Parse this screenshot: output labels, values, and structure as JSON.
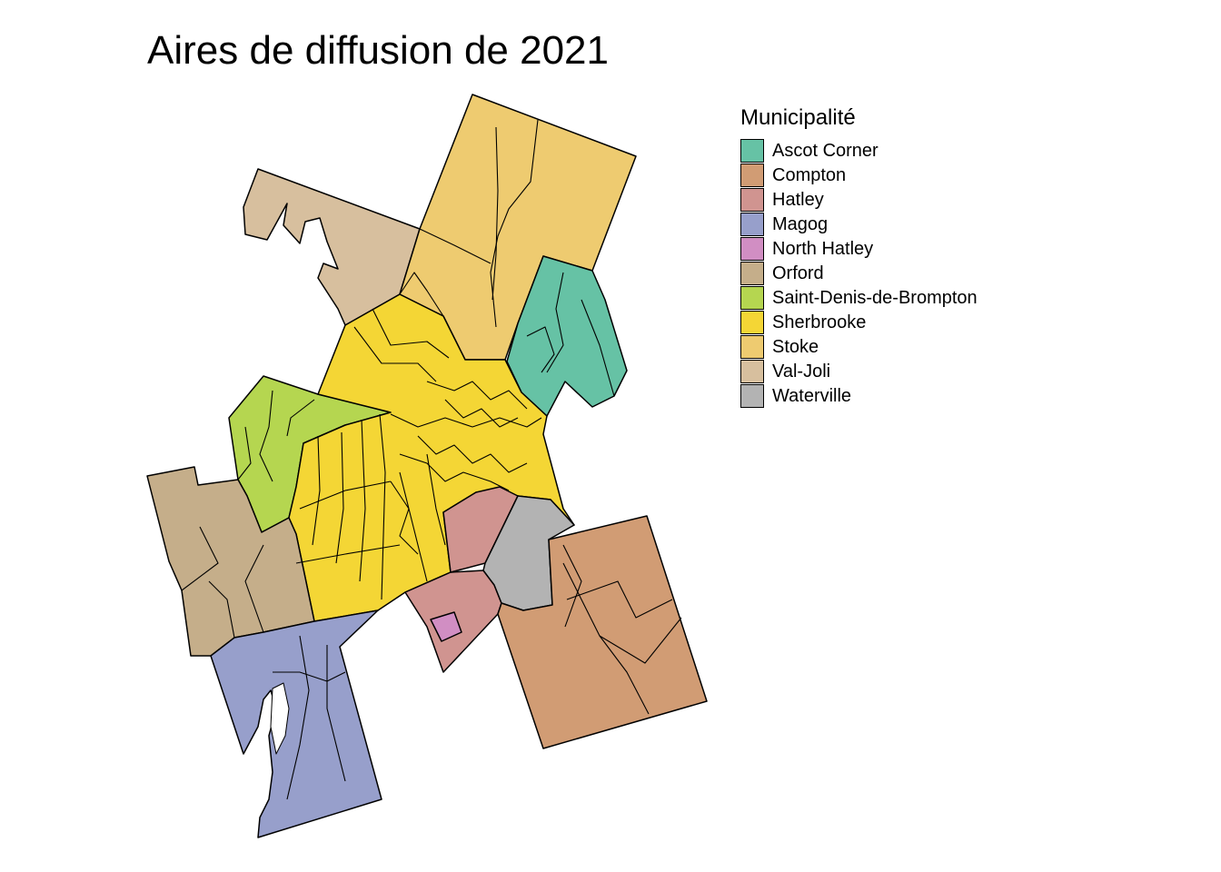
{
  "title": "Aires de diffusion de 2021",
  "legend": {
    "title": "Municipalité",
    "items": [
      {
        "label": "Ascot Corner",
        "color": "#66c2a5"
      },
      {
        "label": "Compton",
        "color": "#d19c74"
      },
      {
        "label": "Hatley",
        "color": "#d09490"
      },
      {
        "label": "Magog",
        "color": "#979fcb"
      },
      {
        "label": "North Hatley",
        "color": "#d18ec3"
      },
      {
        "label": "Orford",
        "color": "#c5ae8a"
      },
      {
        "label": "Saint-Denis-de-Brompton",
        "color": "#b5d650"
      },
      {
        "label": "Sherbrooke",
        "color": "#f4d635"
      },
      {
        "label": "Stoke",
        "color": "#eecb70"
      },
      {
        "label": "Val-Joli",
        "color": "#d7bf9e"
      },
      {
        "label": "Waterville",
        "color": "#b3b3b3"
      }
    ]
  }
}
